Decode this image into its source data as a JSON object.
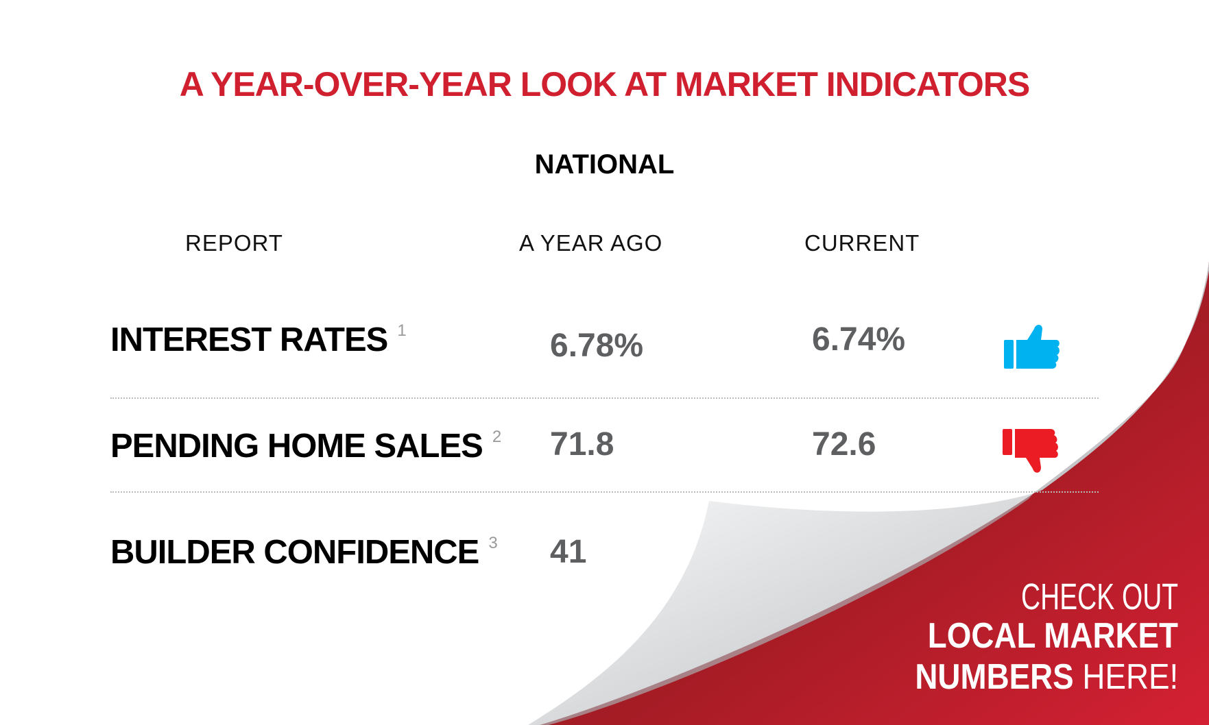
{
  "title": "A YEAR-OVER-YEAR LOOK AT MARKET INDICATORS",
  "region": "NATIONAL",
  "columns": [
    "REPORT",
    "A YEAR AGO",
    "CURRENT"
  ],
  "rows": [
    {
      "label": "INTEREST RATES",
      "footnote": "1",
      "year_ago": "6.78%",
      "current": "6.74%",
      "trend_icon": "thumbs-up-icon",
      "trend_color": "#00b3f0"
    },
    {
      "label": "PENDING HOME SALES",
      "footnote": "2",
      "year_ago": "71.8",
      "current": "72.6",
      "trend_icon": "thumbs-down-icon",
      "trend_color": "#ec1c24"
    },
    {
      "label": "BUILDER CONFIDENCE",
      "footnote": "3",
      "year_ago": "41"
    }
  ],
  "cta": {
    "line1": "CHECK OUT",
    "line2": "LOCAL MARKET",
    "line3_bold": "NUMBERS",
    "line3_light": " HERE!"
  },
  "colors": {
    "accent": "#d0202f",
    "value_gray": "#5e5f61",
    "cta_red": "#c41e2e"
  }
}
